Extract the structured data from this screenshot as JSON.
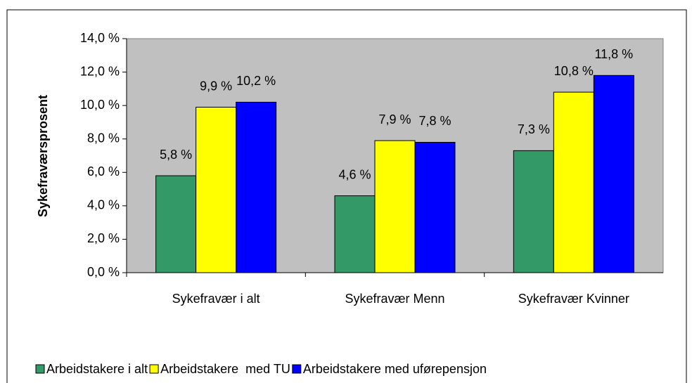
{
  "chart_data": {
    "type": "bar",
    "y_label": "Sykefraværsprosent",
    "categories": [
      "Sykefravær i alt",
      "Sykefravær Menn",
      "Sykefravær Kvinner"
    ],
    "series": [
      {
        "name": "Arbeidstakere i alt",
        "color": "#339966",
        "values": [
          5.8,
          4.6,
          7.3
        ],
        "value_labels": [
          "5,8 %",
          "4,6 %",
          "7,3 %"
        ]
      },
      {
        "name": "Arbeidstakere  med TU",
        "color": "#ffff00",
        "values": [
          9.9,
          7.9,
          10.8
        ],
        "value_labels": [
          "9,9 %",
          "7,9 %",
          "10,8 %"
        ]
      },
      {
        "name": "Arbeidstakere med uførepensjon",
        "color": "#0000ff",
        "values": [
          10.2,
          7.8,
          11.8
        ],
        "value_labels": [
          "10,2 %",
          "7,8 %",
          "11,8 %"
        ]
      }
    ],
    "ylim": [
      0,
      14
    ],
    "yticks": [
      {
        "value": 0,
        "label": "0,0 %"
      },
      {
        "value": 2,
        "label": "2,0 %"
      },
      {
        "value": 4,
        "label": "4,0 %"
      },
      {
        "value": 6,
        "label": "6,0 %"
      },
      {
        "value": 8,
        "label": "8,0 %"
      },
      {
        "value": 10,
        "label": "10,0 %"
      },
      {
        "value": 12,
        "label": "12,0 %"
      },
      {
        "value": 14,
        "label": "14,0 %"
      }
    ],
    "plot_background": "#c0c0c0"
  }
}
